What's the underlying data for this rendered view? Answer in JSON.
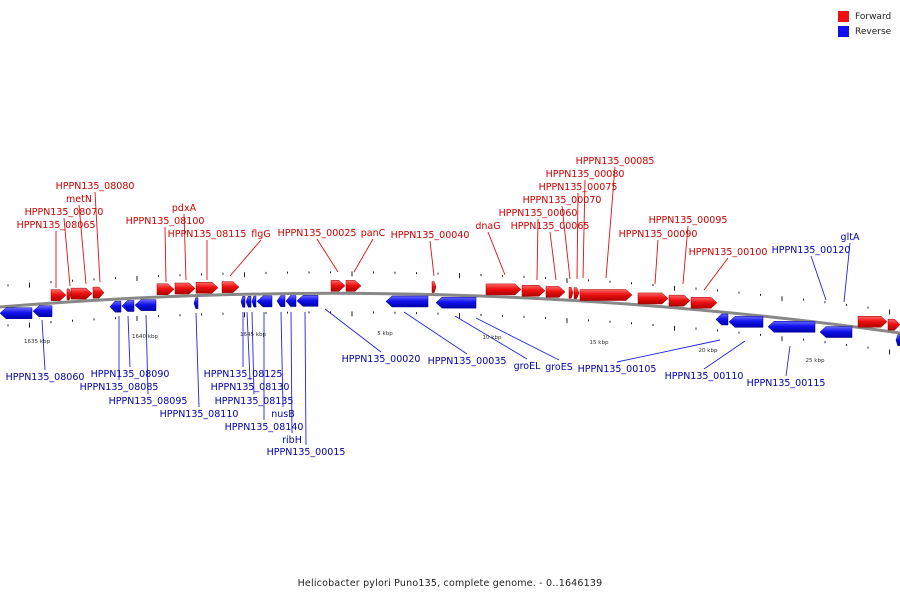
{
  "legend": {
    "forward_label": "Forward",
    "reverse_label": "Reverse",
    "forward_color": "#ee1111",
    "reverse_color": "#1111ee"
  },
  "caption": "Helicobacter pylori Puno135, complete genome. - 0..1646139",
  "scale_labels": [
    "1635 kbp",
    "1640 kbp",
    "1645 kbp",
    "5 kbp",
    "10 kbp",
    "15 kbp",
    "20 kbp",
    "25 kbp"
  ],
  "forward_labels": [
    "HPPN135_08080",
    "metN",
    "HPPN135_08070",
    "HPPN135_08065",
    "pdxA",
    "HPPN135_08100",
    "HPPN135_08115",
    "flgG",
    "HPPN135_00025",
    "panC",
    "HPPN135_00040",
    "dnaG",
    "HPPN135_00085",
    "HPPN135_00080",
    "HPPN135_00075",
    "HPPN135_00070",
    "HPPN135_00060",
    "HPPN135_00065",
    "HPPN135_00095",
    "HPPN135_00090",
    "HPPN135_00100"
  ],
  "reverse_labels": [
    "HPPN135_00120",
    "gltA",
    "HPPN135_08060",
    "HPPN135_08090",
    "HPPN135_08085",
    "HPPN135_08095",
    "HPPN135_08110",
    "HPPN135_08125",
    "HPPN135_08130",
    "HPPN135_08135",
    "nusB",
    "HPPN135_08140",
    "ribH",
    "HPPN135_00015",
    "HPPN135_00020",
    "HPPN135_00035",
    "groEL",
    "groES",
    "HPPN135_00105",
    "HPPN135_00110",
    "HPPN135_00115"
  ]
}
